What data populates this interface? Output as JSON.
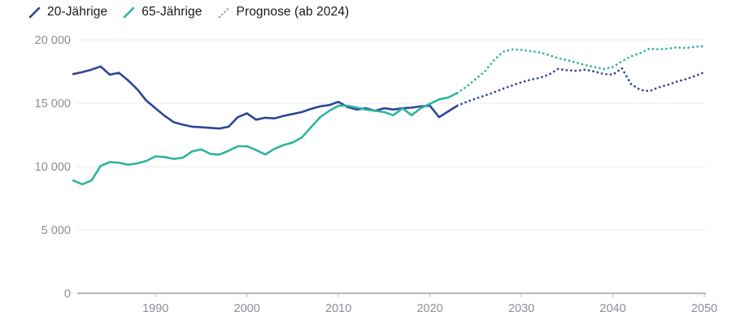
{
  "legend": {
    "items": [
      {
        "label": "20-Jährige",
        "color": "#2c4696",
        "style": "solid"
      },
      {
        "label": "65-Jährige",
        "color": "#2eb4a0",
        "style": "solid"
      },
      {
        "label": "Prognose (ab 2024)",
        "color": "#8f959c",
        "style": "dotted"
      }
    ]
  },
  "chart_data": {
    "type": "line",
    "title": "",
    "xlabel": "",
    "ylabel": "",
    "x_range": [
      1981,
      2050
    ],
    "ylim": [
      0,
      20000
    ],
    "y_ticks": [
      0,
      5000,
      10000,
      15000,
      20000
    ],
    "y_tick_labels": [
      "0",
      "5 000",
      "10 000",
      "15 000",
      "20 000"
    ],
    "x_ticks": [
      1990,
      2000,
      2010,
      2020,
      2030,
      2040,
      2050
    ],
    "grid": "horizontal",
    "legend_position": "top-left",
    "forecast_start": 2024,
    "forecast_note": "dotted from 2024 onward",
    "series": [
      {
        "name": "20-Jährige",
        "color": "#2c4696",
        "start_year": 1981,
        "values": [
          17300,
          17450,
          17650,
          17900,
          17250,
          17400,
          16800,
          16100,
          15200,
          14600,
          14000,
          13500,
          13300,
          13150,
          13100,
          13050,
          13000,
          13150,
          13900,
          14200,
          13700,
          13850,
          13800,
          14000,
          14150,
          14300,
          14550,
          14750,
          14850,
          15100,
          14700,
          14500,
          14600,
          14400,
          14600,
          14500,
          14600,
          14650,
          14750,
          14800,
          13900,
          14350,
          14800,
          15100,
          15350,
          15600,
          15850,
          16150,
          16400,
          16650,
          16850,
          17000,
          17250,
          17700,
          17600,
          17550,
          17650,
          17500,
          17300,
          17250,
          17750,
          16500,
          16050,
          15950,
          16250,
          16450,
          16700,
          16900,
          17150,
          17450
        ]
      },
      {
        "name": "65-Jährige",
        "color": "#2eb4a0",
        "start_year": 1981,
        "values": [
          8900,
          8600,
          8900,
          10050,
          10350,
          10300,
          10150,
          10250,
          10450,
          10800,
          10750,
          10600,
          10700,
          11200,
          11350,
          11000,
          10950,
          11250,
          11600,
          11600,
          11300,
          10950,
          11400,
          11700,
          11900,
          12300,
          13100,
          13900,
          14400,
          14800,
          14800,
          14650,
          14500,
          14400,
          14300,
          14050,
          14600,
          14050,
          14600,
          14950,
          15300,
          15450,
          15800,
          16300,
          16900,
          17500,
          18400,
          19050,
          19250,
          19200,
          19100,
          19000,
          18800,
          18550,
          18400,
          18200,
          18000,
          17850,
          17700,
          17850,
          18300,
          18700,
          18950,
          19300,
          19250,
          19300,
          19400,
          19350,
          19450,
          19500
        ]
      }
    ]
  }
}
